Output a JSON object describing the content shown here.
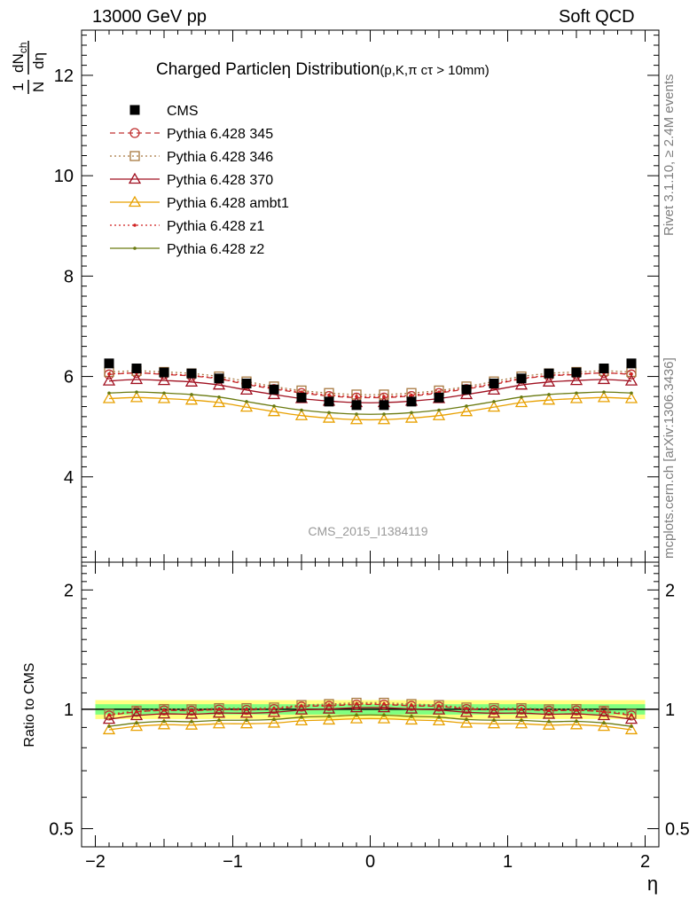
{
  "header": {
    "left": "13000 GeV pp",
    "right": "Soft QCD"
  },
  "side_labels": {
    "rivet": "Rivet 3.1.10, ≥ 2.4M events",
    "mcplots": "mcplots.cern.ch [arXiv:1306.3436]"
  },
  "watermark": "CMS_2015_I1384119",
  "chart_data": [
    {
      "type": "line",
      "title": "Charged Particleη Distribution",
      "title_suffix": "(p,K,π cτ > 10mm)",
      "ylabel": "1/N dN_ch/dη",
      "xlim": [
        -2.1,
        2.1
      ],
      "ylim": [
        2.3,
        12.9
      ],
      "yticks": [
        4,
        6,
        8,
        10,
        12
      ],
      "x": [
        -1.9,
        -1.7,
        -1.5,
        -1.3,
        -1.1,
        -0.9,
        -0.7,
        -0.5,
        -0.3,
        -0.1,
        0.1,
        0.3,
        0.5,
        0.7,
        0.9,
        1.1,
        1.3,
        1.5,
        1.7,
        1.9
      ],
      "legend_position": "top-left",
      "series": [
        {
          "name": "CMS",
          "color": "#000000",
          "marker": "square-filled",
          "line": "none",
          "values": [
            6.26,
            6.16,
            6.08,
            6.06,
            5.96,
            5.86,
            5.74,
            5.58,
            5.5,
            5.43,
            5.43,
            5.5,
            5.58,
            5.74,
            5.86,
            5.96,
            6.06,
            6.08,
            6.16,
            6.26
          ]
        },
        {
          "name": "Pythia 6.428 345",
          "color": "#c03030",
          "marker": "circle-open",
          "line": "dashed",
          "values": [
            6.04,
            6.07,
            6.04,
            6.01,
            5.95,
            5.84,
            5.75,
            5.67,
            5.61,
            5.58,
            5.58,
            5.61,
            5.67,
            5.75,
            5.84,
            5.95,
            6.01,
            6.04,
            6.07,
            6.04
          ]
        },
        {
          "name": "Pythia 6.428 346",
          "color": "#a87840",
          "marker": "square-open",
          "line": "dotted",
          "values": [
            6.09,
            6.11,
            6.09,
            6.06,
            6.0,
            5.9,
            5.8,
            5.72,
            5.67,
            5.64,
            5.64,
            5.67,
            5.72,
            5.8,
            5.9,
            6.0,
            6.06,
            6.09,
            6.11,
            6.09
          ]
        },
        {
          "name": "Pythia 6.428 370",
          "color": "#a01020",
          "marker": "triangle-open",
          "line": "solid",
          "values": [
            5.91,
            5.94,
            5.92,
            5.89,
            5.83,
            5.73,
            5.64,
            5.56,
            5.51,
            5.48,
            5.48,
            5.51,
            5.56,
            5.64,
            5.73,
            5.83,
            5.89,
            5.92,
            5.94,
            5.91
          ]
        },
        {
          "name": "Pythia 6.428 ambt1",
          "color": "#e8a000",
          "marker": "triangle-open",
          "line": "solid",
          "values": [
            5.56,
            5.58,
            5.56,
            5.53,
            5.48,
            5.39,
            5.3,
            5.22,
            5.17,
            5.14,
            5.14,
            5.17,
            5.22,
            5.3,
            5.39,
            5.48,
            5.53,
            5.56,
            5.58,
            5.56
          ]
        },
        {
          "name": "Pythia 6.428 z1",
          "color": "#d02020",
          "marker": "dot",
          "line": "dotted",
          "values": [
            6.05,
            6.07,
            6.05,
            6.02,
            5.96,
            5.86,
            5.77,
            5.69,
            5.63,
            5.6,
            5.6,
            5.63,
            5.69,
            5.77,
            5.86,
            5.96,
            6.02,
            6.05,
            6.07,
            6.05
          ]
        },
        {
          "name": "Pythia 6.428 z2",
          "color": "#6a7a10",
          "marker": "dot",
          "line": "solid",
          "values": [
            5.67,
            5.69,
            5.67,
            5.64,
            5.59,
            5.5,
            5.41,
            5.33,
            5.28,
            5.25,
            5.25,
            5.28,
            5.33,
            5.41,
            5.5,
            5.59,
            5.64,
            5.67,
            5.69,
            5.67
          ]
        }
      ]
    },
    {
      "type": "line",
      "ylabel": "Ratio to CMS",
      "xlabel": "η",
      "xlim": [
        -2.1,
        2.1
      ],
      "ylim": [
        0.45,
        2.35
      ],
      "ylog": true,
      "yticks": [
        0.5,
        1,
        2
      ],
      "xticks": [
        -2,
        -1,
        0,
        1,
        2
      ],
      "xtick_labels": [
        "−2",
        "−1",
        "0",
        "1",
        "2"
      ],
      "reference": 1,
      "bands": [
        {
          "color": "#ffff80",
          "half_width": 0.055
        },
        {
          "color": "#80ff80",
          "half_width": 0.03
        }
      ]
    }
  ]
}
